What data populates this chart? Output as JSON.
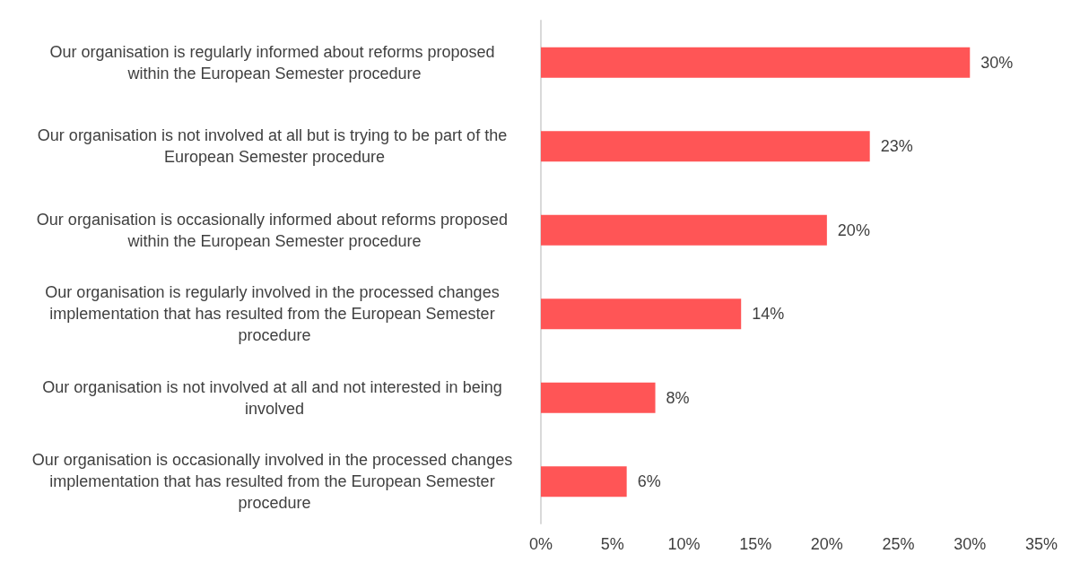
{
  "chart_data": {
    "type": "bar",
    "orientation": "horizontal",
    "categories": [
      "Our organisation is regularly informed about reforms proposed within the European Semester procedure",
      "Our organisation is not involved at all but is trying to be part of the European Semester procedure",
      "Our organisation is occasionally informed about reforms proposed within the European Semester procedure",
      "Our organisation is regularly involved in the processed changes implementation that has resulted from the European Semester procedure",
      "Our organisation is not involved at all and not interested in being involved",
      "Our organisation is occasionally involved in the processed changes implementation that has resulted from the European Semester procedure"
    ],
    "values": [
      30,
      23,
      20,
      14,
      8,
      6
    ],
    "value_labels": [
      "30%",
      "23%",
      "20%",
      "14%",
      "8%",
      "6%"
    ],
    "color": "#ff5556",
    "xlim": [
      0,
      35
    ],
    "xticks": [
      {
        "value": 0,
        "label": "0%"
      },
      {
        "value": 5,
        "label": "5%"
      },
      {
        "value": 10,
        "label": "10%"
      },
      {
        "value": 15,
        "label": "15%"
      },
      {
        "value": 20,
        "label": "20%"
      },
      {
        "value": 25,
        "label": "25%"
      },
      {
        "value": 30,
        "label": "30%"
      },
      {
        "value": 35,
        "label": "35%"
      }
    ],
    "grid": false
  }
}
